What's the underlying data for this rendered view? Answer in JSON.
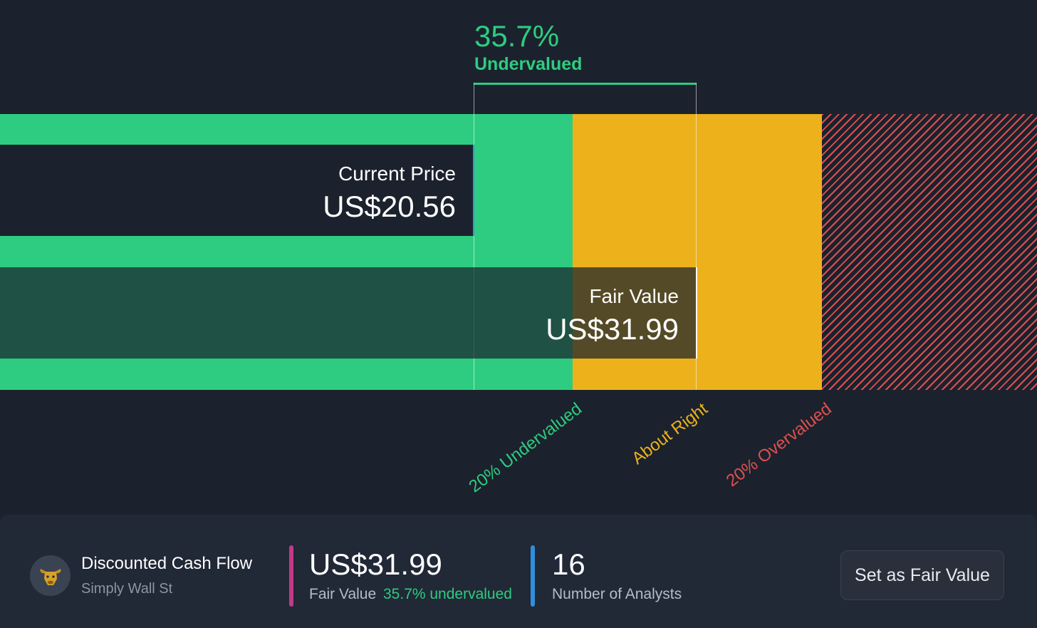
{
  "headline": {
    "percent": "35.7%",
    "label": "Undervalued"
  },
  "current_price": {
    "label": "Current Price",
    "value": "US$20.56"
  },
  "fair_value": {
    "label": "Fair Value",
    "value": "US$31.99"
  },
  "zones": {
    "undervalued": "20% Undervalued",
    "about_right": "About Right",
    "overvalued": "20% Overvalued"
  },
  "colors": {
    "green": "#2ecc80",
    "yellow": "#ecb11b",
    "red": "#e04f4f",
    "background": "#1b222d"
  },
  "footer": {
    "model_title": "Discounted Cash Flow",
    "model_source": "Simply Wall St",
    "avatar_icon": "bull-icon",
    "fair_value_amount": "US$31.99",
    "fair_value_label": "Fair Value",
    "fair_value_pct": "35.7% undervalued",
    "analysts_count": "16",
    "analysts_label": "Number of Analysts",
    "button_label": "Set as Fair Value"
  }
}
